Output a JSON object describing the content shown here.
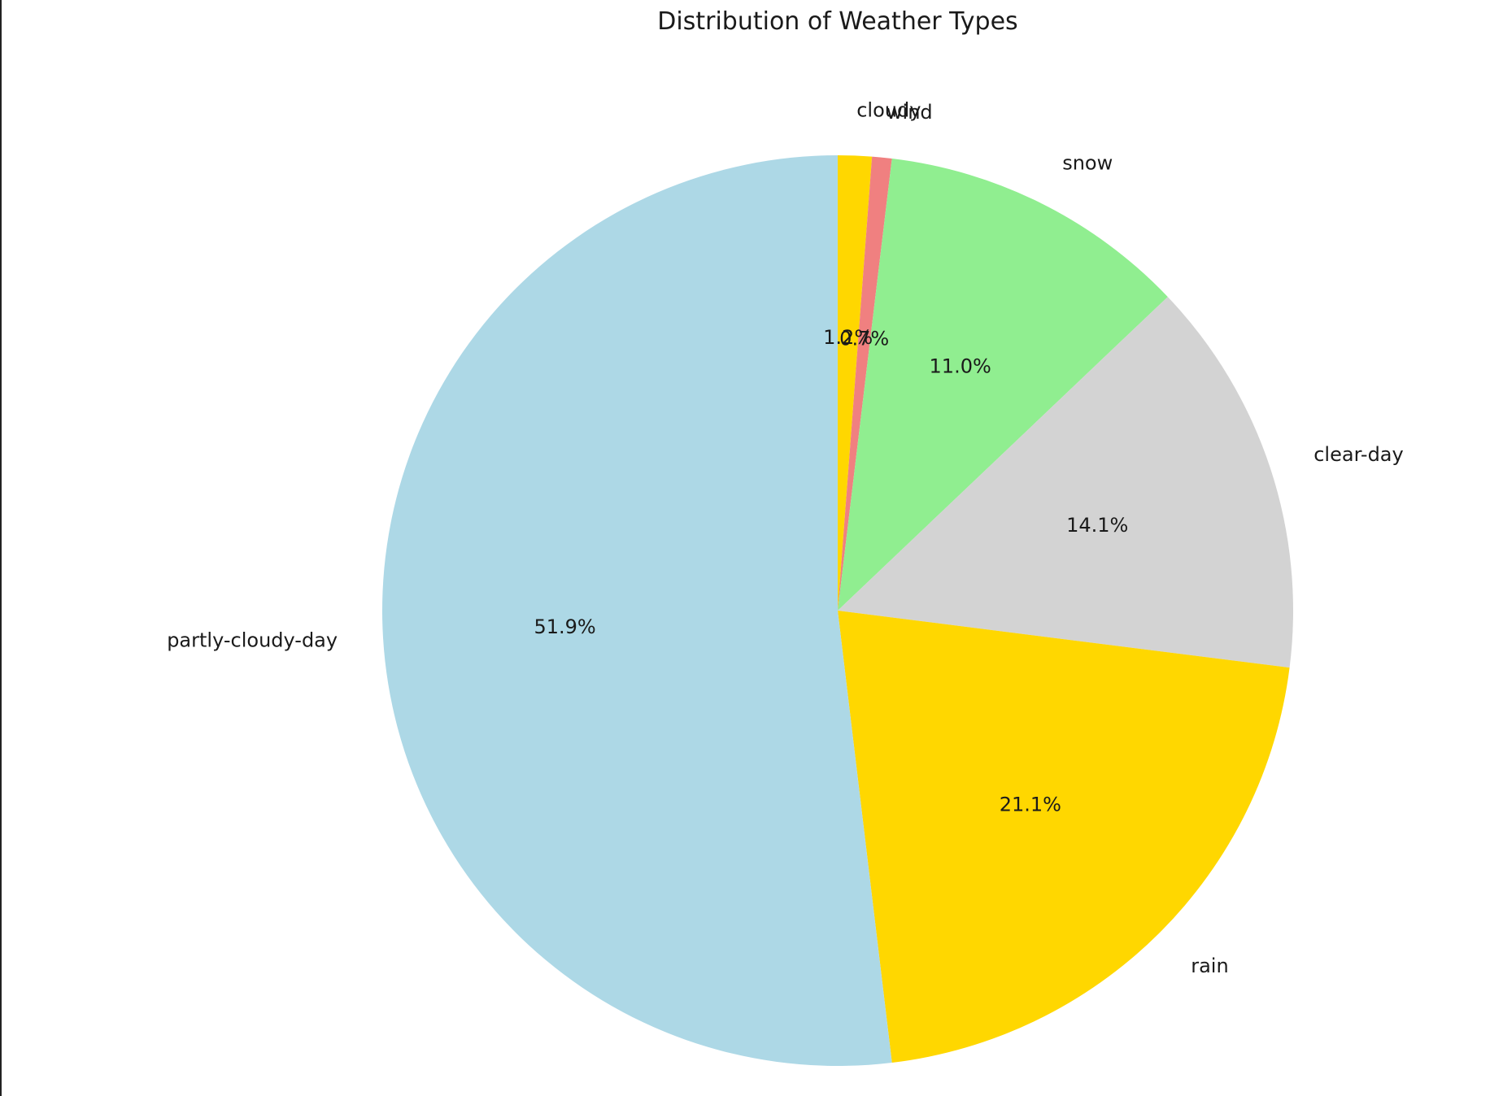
{
  "chart_data": {
    "type": "pie",
    "title": "Distribution of Weather Types",
    "start_angle_deg": 90,
    "direction": "clockwise",
    "slices": [
      {
        "label": "cloudy",
        "value": 1.2,
        "pct_label": "1.2%",
        "color": "#ffd700"
      },
      {
        "label": "wind",
        "value": 0.7,
        "pct_label": "0.7%",
        "color": "#f08080"
      },
      {
        "label": "snow",
        "value": 11.0,
        "pct_label": "11.0%",
        "color": "#90ee90"
      },
      {
        "label": "clear-day",
        "value": 14.1,
        "pct_label": "14.1%",
        "color": "#d3d3d3"
      },
      {
        "label": "rain",
        "value": 21.1,
        "pct_label": "21.1%",
        "color": "#ffd700"
      },
      {
        "label": "partly-cloudy-day",
        "value": 51.9,
        "pct_label": "51.9%",
        "color": "#add8e6"
      }
    ]
  }
}
